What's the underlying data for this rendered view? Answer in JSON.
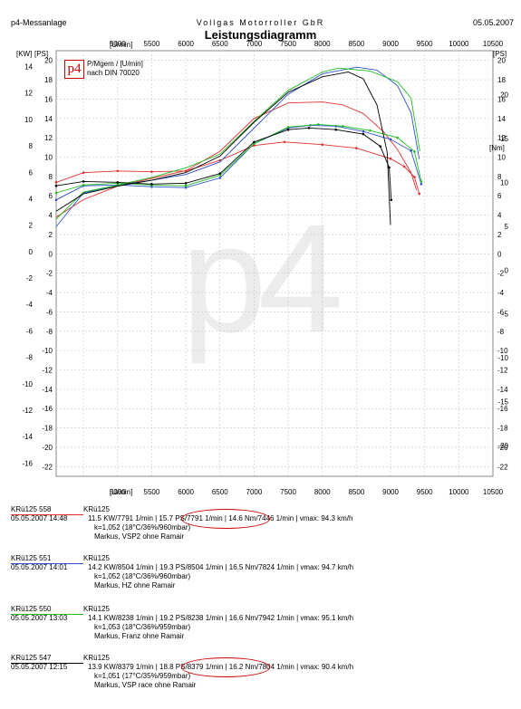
{
  "header": {
    "left": "p4-Messanlage",
    "center": "Vollgas Motorroller GbR",
    "right": "05.05.2007",
    "title": "Leistungsdiagramm"
  },
  "subtitle": {
    "logo_text": "p4",
    "line1": "P/Mgem / [U/min]",
    "line2": "nach DIN 70020",
    "watermark": "p4"
  },
  "axes": {
    "rpm_unit": "[U/min]",
    "kw_unit": "[KW]",
    "ps_unit": "[PS]",
    "nm_unit": "[Nm]",
    "rpm_ticks": [
      "4500",
      "5000",
      "5500",
      "6000",
      "6500",
      "7000",
      "7500",
      "8000",
      "8500",
      "9000",
      "9500",
      "10000",
      "10500"
    ],
    "kw_ticks": [
      "14",
      "12",
      "10",
      "8",
      "6",
      "4",
      "2",
      "0",
      "-2",
      "-4",
      "-6",
      "-8",
      "-10",
      "-12",
      "-14",
      "-16"
    ],
    "ps_ticks": [
      "20",
      "18",
      "16",
      "14",
      "12",
      "10",
      "8",
      "6",
      "4",
      "2",
      "0",
      "-2",
      "-4",
      "-6",
      "-8",
      "-10",
      "-12",
      "-14",
      "-16",
      "-18",
      "-20",
      "-22"
    ],
    "nm_ticks": [
      "20",
      "15",
      "10",
      "5",
      "0",
      "-5",
      "-10",
      "-15",
      "-20"
    ]
  },
  "chart_data": {
    "type": "line",
    "title": "Leistungsdiagramm",
    "x_axis": {
      "label": "[U/min]",
      "range": [
        4100,
        10500
      ]
    },
    "y_axes": {
      "KW": [
        -17,
        15.2
      ],
      "PS": [
        -23,
        21
      ],
      "Nm": [
        -23.5,
        25
      ]
    },
    "grid": true,
    "series": [
      {
        "name": "KRü125 558",
        "color": "#e03030",
        "quantity": "PS",
        "x": [
          4100,
          4500,
          5000,
          5500,
          6000,
          6500,
          7000,
          7500,
          8000,
          8300,
          8600,
          8900,
          9100,
          9300,
          9380
        ],
        "values": [
          3.8,
          5.6,
          7.0,
          7.8,
          8.6,
          10.6,
          14.0,
          15.6,
          15.7,
          15.4,
          14.5,
          12.6,
          10.8,
          8.4,
          6.6
        ]
      },
      {
        "name": "KRü125 558",
        "color": "#e03030",
        "quantity": "Nm",
        "x": [
          4100,
          4500,
          5000,
          5500,
          6000,
          6500,
          7000,
          7446,
          8000,
          8500,
          9000,
          9200,
          9350,
          9420
        ],
        "values": [
          10.0,
          11.1,
          11.3,
          11.2,
          11.3,
          12.5,
          14.2,
          14.6,
          14.3,
          13.9,
          12.7,
          11.8,
          10.6,
          8.7
        ]
      },
      {
        "name": "KRü125 551",
        "color": "#3050d0",
        "quantity": "PS",
        "x": [
          4100,
          4500,
          5000,
          5500,
          6000,
          6500,
          7000,
          7500,
          8000,
          8504,
          8800,
          9100,
          9300,
          9420
        ],
        "values": [
          2.8,
          6.3,
          7.1,
          7.6,
          8.2,
          9.5,
          13.0,
          16.5,
          18.6,
          19.3,
          19.0,
          17.4,
          14.6,
          9.8
        ]
      },
      {
        "name": "KRü125 551",
        "color": "#3050d0",
        "quantity": "Nm",
        "x": [
          4100,
          4500,
          5000,
          5500,
          6000,
          6500,
          7000,
          7500,
          7824,
          8200,
          8600,
          9000,
          9300,
          9450
        ],
        "values": [
          8.0,
          9.6,
          9.7,
          9.5,
          9.4,
          10.5,
          14.4,
          16.2,
          16.5,
          16.4,
          15.8,
          14.9,
          13.6,
          9.8
        ]
      },
      {
        "name": "KRü125 550",
        "color": "#20c020",
        "quantity": "PS",
        "x": [
          4100,
          4500,
          5000,
          5500,
          6000,
          6500,
          7000,
          7500,
          8000,
          8238,
          8700,
          9100,
          9300,
          9430
        ],
        "values": [
          3.6,
          6.4,
          7.1,
          7.9,
          8.9,
          10.3,
          13.7,
          16.9,
          18.8,
          19.2,
          18.9,
          17.8,
          16.1,
          10.6
        ]
      },
      {
        "name": "KRü125 550",
        "color": "#20c020",
        "quantity": "Nm",
        "x": [
          4100,
          4500,
          5000,
          5500,
          6000,
          6500,
          7000,
          7500,
          7942,
          8300,
          8700,
          9100,
          9350,
          9450
        ],
        "values": [
          8.8,
          9.7,
          9.9,
          9.7,
          9.6,
          10.8,
          14.4,
          16.3,
          16.6,
          16.4,
          15.9,
          15.1,
          13.5,
          10.1
        ]
      },
      {
        "name": "KRü125 547",
        "color": "#000000",
        "quantity": "PS",
        "x": [
          4100,
          4500,
          5000,
          5500,
          6000,
          6500,
          7000,
          7500,
          8000,
          8379,
          8600,
          8800,
          8950,
          9000
        ],
        "values": [
          4.4,
          6.2,
          7.0,
          7.6,
          8.4,
          10.1,
          13.6,
          16.7,
          18.3,
          18.8,
          18.1,
          15.4,
          10.5,
          3.0
        ]
      },
      {
        "name": "KRü125 547",
        "color": "#000000",
        "quantity": "Nm",
        "x": [
          4100,
          4500,
          5000,
          5500,
          6000,
          6500,
          7000,
          7500,
          7804,
          8200,
          8600,
          8850,
          8980,
          9010
        ],
        "values": [
          9.6,
          10.1,
          10.0,
          9.8,
          9.9,
          11.0,
          14.6,
          16.0,
          16.2,
          16.0,
          15.5,
          14.1,
          11.7,
          8.0
        ]
      }
    ]
  },
  "legend": [
    {
      "name": "KRü125 558",
      "model": "KRü125",
      "color": "#e03030",
      "date": "05.05.2007  14:48",
      "values": "11.5 KW/7791 1/min  |  15.7 PS/7791 1/min  |  14.6 Nm/7446 1/min  |  vmax: 94.3 km/h",
      "k": "k=1,052 (18°C/36%/960mbar)",
      "owner": "Markus, VSP2 ohne Ramair",
      "circled": true
    },
    {
      "name": "KRü125 551",
      "model": "KRü125",
      "color": "#3050d0",
      "date": "05.05.2007  14:01",
      "values": "14.2 KW/8504 1/min  |  19.3 PS/8504 1/min  |  16.5 Nm/7824 1/min  |  vmax: 94.7 km/h",
      "k": "k=1,052 (18°C/36%/960mbar)",
      "owner": "Markus, HZ ohne Ramair",
      "circled": false
    },
    {
      "name": "KRü125 550",
      "model": "KRü125",
      "color": "#20c020",
      "date": "05.05.2007  13:03",
      "values": "14.1 KW/8238 1/min  |  19.2 PS/8238 1/min  |  16.6 Nm/7942 1/min  |  vmax: 95.1 km/h",
      "k": "k=1,053 (18°C/36%/959mbar)",
      "owner": "Markus, Franz ohne Ramair",
      "circled": false
    },
    {
      "name": "KRü125 547",
      "model": "KRü125",
      "color": "#000000",
      "date": "05.05.2007  12:15",
      "values": "13.9 KW/8379 1/min  |  18.8 PS/8379 1/min  |  16.2 Nm/7804 1/min  |  vmax: 90.4 km/h",
      "k": "k=1,051 (17°C/35%/959mbar)",
      "owner": "Markus, VSP race ohne Ramair",
      "circled": true
    }
  ]
}
